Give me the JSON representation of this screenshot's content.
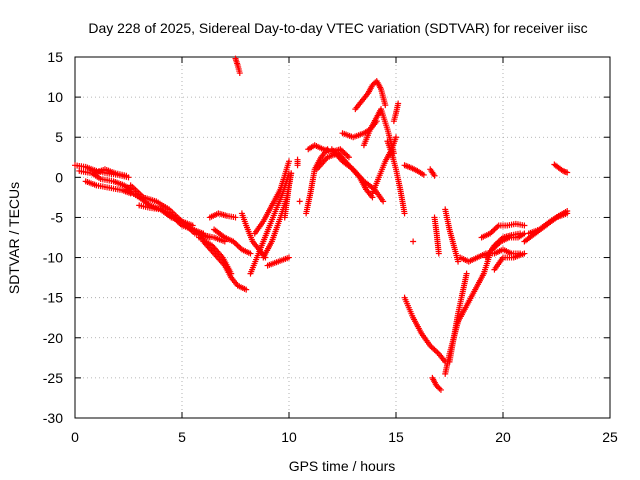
{
  "chart_data": {
    "type": "scatter",
    "title": "Day 228 of 2025, Sidereal Day-to-day VTEC variation (SDTVAR) for receiver iisc",
    "xlabel": "GPS time / hours",
    "ylabel": "SDTVAR / TECUs",
    "xlim": [
      0,
      25
    ],
    "ylim": [
      -30,
      15
    ],
    "xticks": [
      "0",
      "5",
      "10",
      "15",
      "20",
      "25"
    ],
    "yticks": [
      "15",
      "10",
      "5",
      "0",
      "-5",
      "-10",
      "-15",
      "-20",
      "-25",
      "-30"
    ],
    "grid": true,
    "marker": "plus",
    "color": "#ff0000",
    "tracks": [
      {
        "x": [
          0.0,
          0.5,
          1.0,
          1.5,
          2.0,
          2.5
        ],
        "y": [
          1.5,
          1.3,
          0.8,
          0.5,
          0.3,
          0.0
        ]
      },
      {
        "x": [
          0.2,
          0.8,
          1.2,
          1.8,
          2.3,
          2.6
        ],
        "y": [
          0.8,
          0.5,
          -0.2,
          -0.5,
          -1.0,
          -1.5
        ]
      },
      {
        "x": [
          0.5,
          1.0,
          1.6,
          2.2,
          2.6
        ],
        "y": [
          -0.5,
          -1.0,
          -1.3,
          -1.6,
          -2.0
        ]
      },
      {
        "x": [
          0.9,
          1.4,
          1.9,
          2.4
        ],
        "y": [
          0.5,
          1.0,
          0.5,
          0.2
        ]
      },
      {
        "x": [
          2.4,
          3.0,
          3.5,
          4.0,
          4.5,
          5.0,
          5.5,
          6.0
        ],
        "y": [
          -1.5,
          -2.5,
          -3.5,
          -4.0,
          -5.0,
          -5.5,
          -6.5,
          -7.0
        ]
      },
      {
        "x": [
          2.6,
          3.2,
          3.8,
          4.4,
          5.0,
          5.6,
          6.3
        ],
        "y": [
          -1.0,
          -2.5,
          -3.0,
          -4.0,
          -5.5,
          -7.0,
          -7.5
        ]
      },
      {
        "x": [
          3.0,
          3.5,
          4.0,
          4.5,
          5.0,
          5.5
        ],
        "y": [
          -3.5,
          -3.8,
          -4.0,
          -4.8,
          -5.5,
          -6.0
        ]
      },
      {
        "x": [
          4.6,
          5.0,
          5.5,
          6.0,
          6.5,
          7.0
        ],
        "y": [
          -5.0,
          -6.0,
          -6.5,
          -7.2,
          -7.5,
          -8.0
        ]
      },
      {
        "x": [
          6.0,
          6.5,
          7.0,
          7.3,
          7.6,
          8.0
        ],
        "y": [
          -8.0,
          -9.5,
          -11.0,
          -12.5,
          -13.5,
          -14.0
        ]
      },
      {
        "x": [
          5.8,
          6.4,
          6.9,
          7.3
        ],
        "y": [
          -7.5,
          -8.5,
          -10.0,
          -12.0
        ]
      },
      {
        "x": [
          6.3,
          6.7,
          7.1,
          7.5
        ],
        "y": [
          -5.0,
          -4.5,
          -4.8,
          -5.0
        ]
      },
      {
        "x": [
          6.5,
          7.0,
          7.4,
          7.8,
          8.2
        ],
        "y": [
          -6.5,
          -7.5,
          -8.0,
          -9.0,
          -9.5
        ]
      },
      {
        "x": [
          7.5,
          7.6,
          7.7
        ],
        "y": [
          14.8,
          14.0,
          13.0
        ]
      },
      {
        "x": [
          7.8,
          8.0,
          8.3,
          8.6,
          8.9
        ],
        "y": [
          -4.5,
          -6.0,
          -8.0,
          -9.0,
          -10.0
        ]
      },
      {
        "x": [
          8.2,
          8.5,
          8.8,
          9.1,
          9.4,
          9.7,
          10.0
        ],
        "y": [
          -12.0,
          -10.0,
          -8.0,
          -6.0,
          -4.0,
          -2.0,
          0.5
        ]
      },
      {
        "x": [
          8.4,
          8.8,
          9.2,
          9.6,
          10.0
        ],
        "y": [
          -7.0,
          -5.5,
          -3.5,
          -1.5,
          2.0
        ]
      },
      {
        "x": [
          8.8,
          9.2,
          9.6,
          9.9,
          10.1
        ],
        "y": [
          -10.0,
          -8.0,
          -5.0,
          -2.5,
          0.5
        ]
      },
      {
        "x": [
          9.0,
          9.5,
          10.0
        ],
        "y": [
          -11.0,
          -10.5,
          -10.0
        ]
      },
      {
        "x": [
          9.8,
          9.9,
          10.0,
          10.1
        ],
        "y": [
          -5.0,
          -3.0,
          -1.0,
          0.5
        ]
      },
      {
        "x": [
          10.4,
          10.4
        ],
        "y": [
          2.2,
          1.5
        ]
      },
      {
        "x": [
          10.5
        ],
        "y": [
          -3.0
        ]
      },
      {
        "x": [
          10.8,
          11.0,
          11.2,
          11.5,
          11.8
        ],
        "y": [
          -4.5,
          -2.0,
          1.0,
          2.5,
          3.5
        ]
      },
      {
        "x": [
          10.9,
          11.2,
          11.6,
          12.0,
          12.4,
          12.8
        ],
        "y": [
          3.5,
          4.0,
          3.5,
          3.2,
          3.5,
          2.5
        ]
      },
      {
        "x": [
          11.3,
          11.8,
          12.3,
          12.8,
          13.3,
          13.6,
          13.9
        ],
        "y": [
          1.0,
          2.5,
          3.0,
          1.5,
          0.0,
          -1.5,
          -2.5
        ]
      },
      {
        "x": [
          12.0,
          12.5,
          13.0,
          13.5,
          14.0,
          14.4
        ],
        "y": [
          3.5,
          2.0,
          1.0,
          -0.5,
          -1.5,
          -3.0
        ]
      },
      {
        "x": [
          12.5,
          13.0,
          13.5,
          13.8,
          14.1
        ],
        "y": [
          5.5,
          5.0,
          5.5,
          6.0,
          7.0
        ]
      },
      {
        "x": [
          13.1,
          13.4,
          13.7,
          13.9,
          14.1,
          14.3,
          14.5
        ],
        "y": [
          8.5,
          9.5,
          10.5,
          11.5,
          12.0,
          11.0,
          9.0
        ]
      },
      {
        "x": [
          13.5,
          13.8,
          14.1,
          14.3,
          14.6,
          14.9
        ],
        "y": [
          4.0,
          6.0,
          7.5,
          8.5,
          6.0,
          3.0
        ]
      },
      {
        "x": [
          13.9,
          14.2,
          14.5,
          14.8,
          15.0
        ],
        "y": [
          -2.0,
          0.0,
          2.0,
          3.5,
          5.0
        ]
      },
      {
        "x": [
          14.6,
          14.8,
          15.0,
          15.2,
          15.4
        ],
        "y": [
          4.5,
          3.0,
          1.0,
          -1.5,
          -4.5
        ]
      },
      {
        "x": [
          14.9,
          15.0,
          15.1
        ],
        "y": [
          7.0,
          8.0,
          9.2
        ]
      },
      {
        "x": [
          15.4,
          15.7,
          16.0,
          16.3
        ],
        "y": [
          1.5,
          1.2,
          0.8,
          0.3
        ]
      },
      {
        "x": [
          16.6,
          16.8
        ],
        "y": [
          1.0,
          0.2
        ]
      },
      {
        "x": [
          15.8
        ],
        "y": [
          -8.0
        ]
      },
      {
        "x": [
          15.4,
          15.8,
          16.2,
          16.6,
          17.0,
          17.3
        ],
        "y": [
          -15.0,
          -17.5,
          -19.5,
          -21.0,
          -22.0,
          -23.0
        ]
      },
      {
        "x": [
          16.7,
          16.9,
          17.1
        ],
        "y": [
          -25.0,
          -26.0,
          -26.5
        ]
      },
      {
        "x": [
          16.8,
          16.9,
          17.0
        ],
        "y": [
          -5.0,
          -7.0,
          -9.5
        ]
      },
      {
        "x": [
          17.3,
          17.5,
          17.7,
          17.9
        ],
        "y": [
          -4.0,
          -6.5,
          -8.5,
          -10.5
        ]
      },
      {
        "x": [
          17.3,
          17.5,
          17.7,
          17.9
        ],
        "y": [
          -24.5,
          -22.0,
          -20.0,
          -18.0
        ]
      },
      {
        "x": [
          17.5,
          17.7,
          17.9,
          18.1,
          18.3
        ],
        "y": [
          -23.0,
          -20.0,
          -17.0,
          -14.5,
          -12.0
        ]
      },
      {
        "x": [
          17.9,
          18.3,
          18.7,
          19.1,
          19.4
        ],
        "y": [
          -18.0,
          -16.0,
          -14.0,
          -12.0,
          -9.5
        ]
      },
      {
        "x": [
          18.0,
          18.4,
          18.8,
          19.2,
          19.6,
          20.0,
          20.4,
          20.8
        ],
        "y": [
          -10.0,
          -10.5,
          -10.0,
          -9.5,
          -9.5,
          -9.0,
          -9.5,
          -9.5
        ]
      },
      {
        "x": [
          19.0,
          19.4,
          19.8,
          20.2,
          20.6,
          21.0
        ],
        "y": [
          -7.5,
          -7.0,
          -6.0,
          -6.0,
          -5.8,
          -6.0
        ]
      },
      {
        "x": [
          19.2,
          19.6,
          20.0,
          20.4,
          20.8
        ],
        "y": [
          -10.0,
          -8.5,
          -7.5,
          -7.2,
          -7.0
        ]
      },
      {
        "x": [
          19.5,
          19.9,
          20.3,
          20.7,
          21.0
        ],
        "y": [
          -9.0,
          -8.0,
          -7.5,
          -7.5,
          -7.0
        ]
      },
      {
        "x": [
          19.6,
          20.0,
          20.5,
          21.0
        ],
        "y": [
          -11.5,
          -10.0,
          -10.0,
          -9.5
        ]
      },
      {
        "x": [
          21.0,
          21.5,
          22.0,
          22.5,
          23.0
        ],
        "y": [
          -8.0,
          -7.0,
          -6.0,
          -5.0,
          -4.5
        ]
      },
      {
        "x": [
          21.2,
          21.7,
          22.2,
          22.6,
          23.0
        ],
        "y": [
          -7.0,
          -6.5,
          -5.5,
          -4.8,
          -4.2
        ]
      },
      {
        "x": [
          22.4,
          22.6,
          22.8,
          23.0
        ],
        "y": [
          1.6,
          1.2,
          0.8,
          0.6
        ]
      }
    ]
  }
}
